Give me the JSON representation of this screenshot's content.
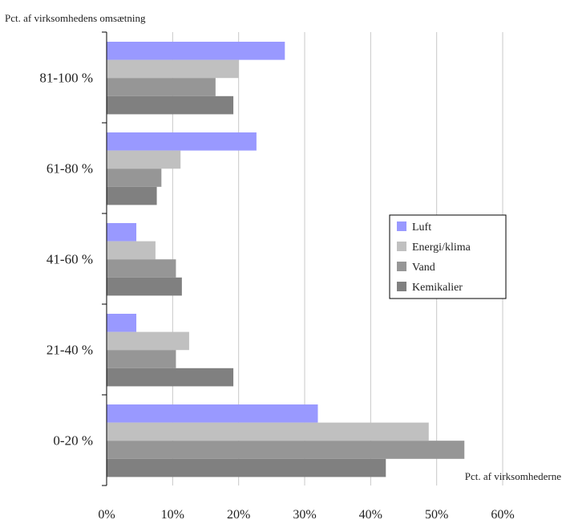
{
  "chart_data": {
    "type": "bar",
    "orientation": "horizontal",
    "title": "",
    "ylabel": "Pct. af virksomhedens omsætning",
    "xlabel": "Pct. af virksomhederne",
    "categories": [
      "81-100 %",
      "61-80 %",
      "41-60 %",
      "21-40 %",
      "0-20 %"
    ],
    "xlim": [
      0,
      60
    ],
    "xticks": [
      "0%",
      "10%",
      "20%",
      "30%",
      "40%",
      "50%",
      "60%"
    ],
    "grid": "vertical",
    "legend_position": "right",
    "series": [
      {
        "name": "Luft",
        "color": "#9999ff",
        "values": [
          27,
          22.7,
          4.5,
          4.5,
          32
        ]
      },
      {
        "name": "Energi/klima",
        "color": "#c0c0c0",
        "values": [
          20,
          11.2,
          7.4,
          12.5,
          48.8
        ]
      },
      {
        "name": "Vand",
        "color": "#969696",
        "values": [
          16.5,
          8.3,
          10.5,
          10.5,
          54.2
        ]
      },
      {
        "name": "Kemikalier",
        "color": "#808080",
        "values": [
          19.2,
          7.6,
          11.4,
          19.2,
          42.3
        ]
      }
    ]
  }
}
